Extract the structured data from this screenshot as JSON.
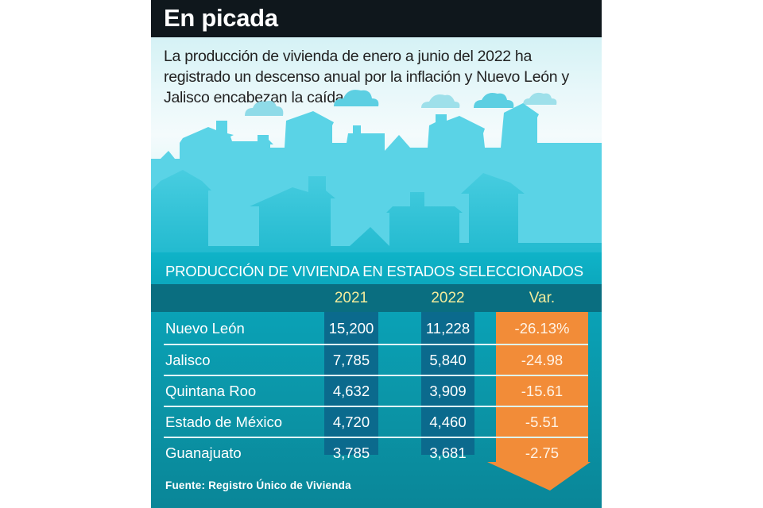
{
  "header": {
    "title": "En picada"
  },
  "intro": "La producción de vivienda de enero a junio del 2022 ha registrado un descenso anual por la inflación y Nuevo León y Jalisco encabezan la caída.",
  "table": {
    "title": "PRODUCCIÓN DE VIVIENDA EN ESTADOS SELECCIONADOS",
    "columns": [
      "2021",
      "2022",
      "Var."
    ],
    "rows": [
      {
        "state": "Nuevo León",
        "y2021": "15,200",
        "y2022": "11,228",
        "var": "-26.13%"
      },
      {
        "state": "Jalisco",
        "y2021": "7,785",
        "y2022": "5,840",
        "var": "-24.98"
      },
      {
        "state": "Quintana Roo",
        "y2021": "4,632",
        "y2022": "3,909",
        "var": "-15.61"
      },
      {
        "state": "Estado de México",
        "y2021": "4,720",
        "y2022": "4,460",
        "var": "-5.51"
      },
      {
        "state": "Guanajuato",
        "y2021": "3,785",
        "y2022": "3,681",
        "var": "-2.75"
      }
    ],
    "source": "Fuente: Registro Único de Vivienda"
  },
  "colors": {
    "header_bg": "#0f171c",
    "table_header_bg": "#0a6e80",
    "value_column_bg": "#0b6a8d",
    "arrow": "#f28c38",
    "column_header_text": "#f3ec9c"
  }
}
